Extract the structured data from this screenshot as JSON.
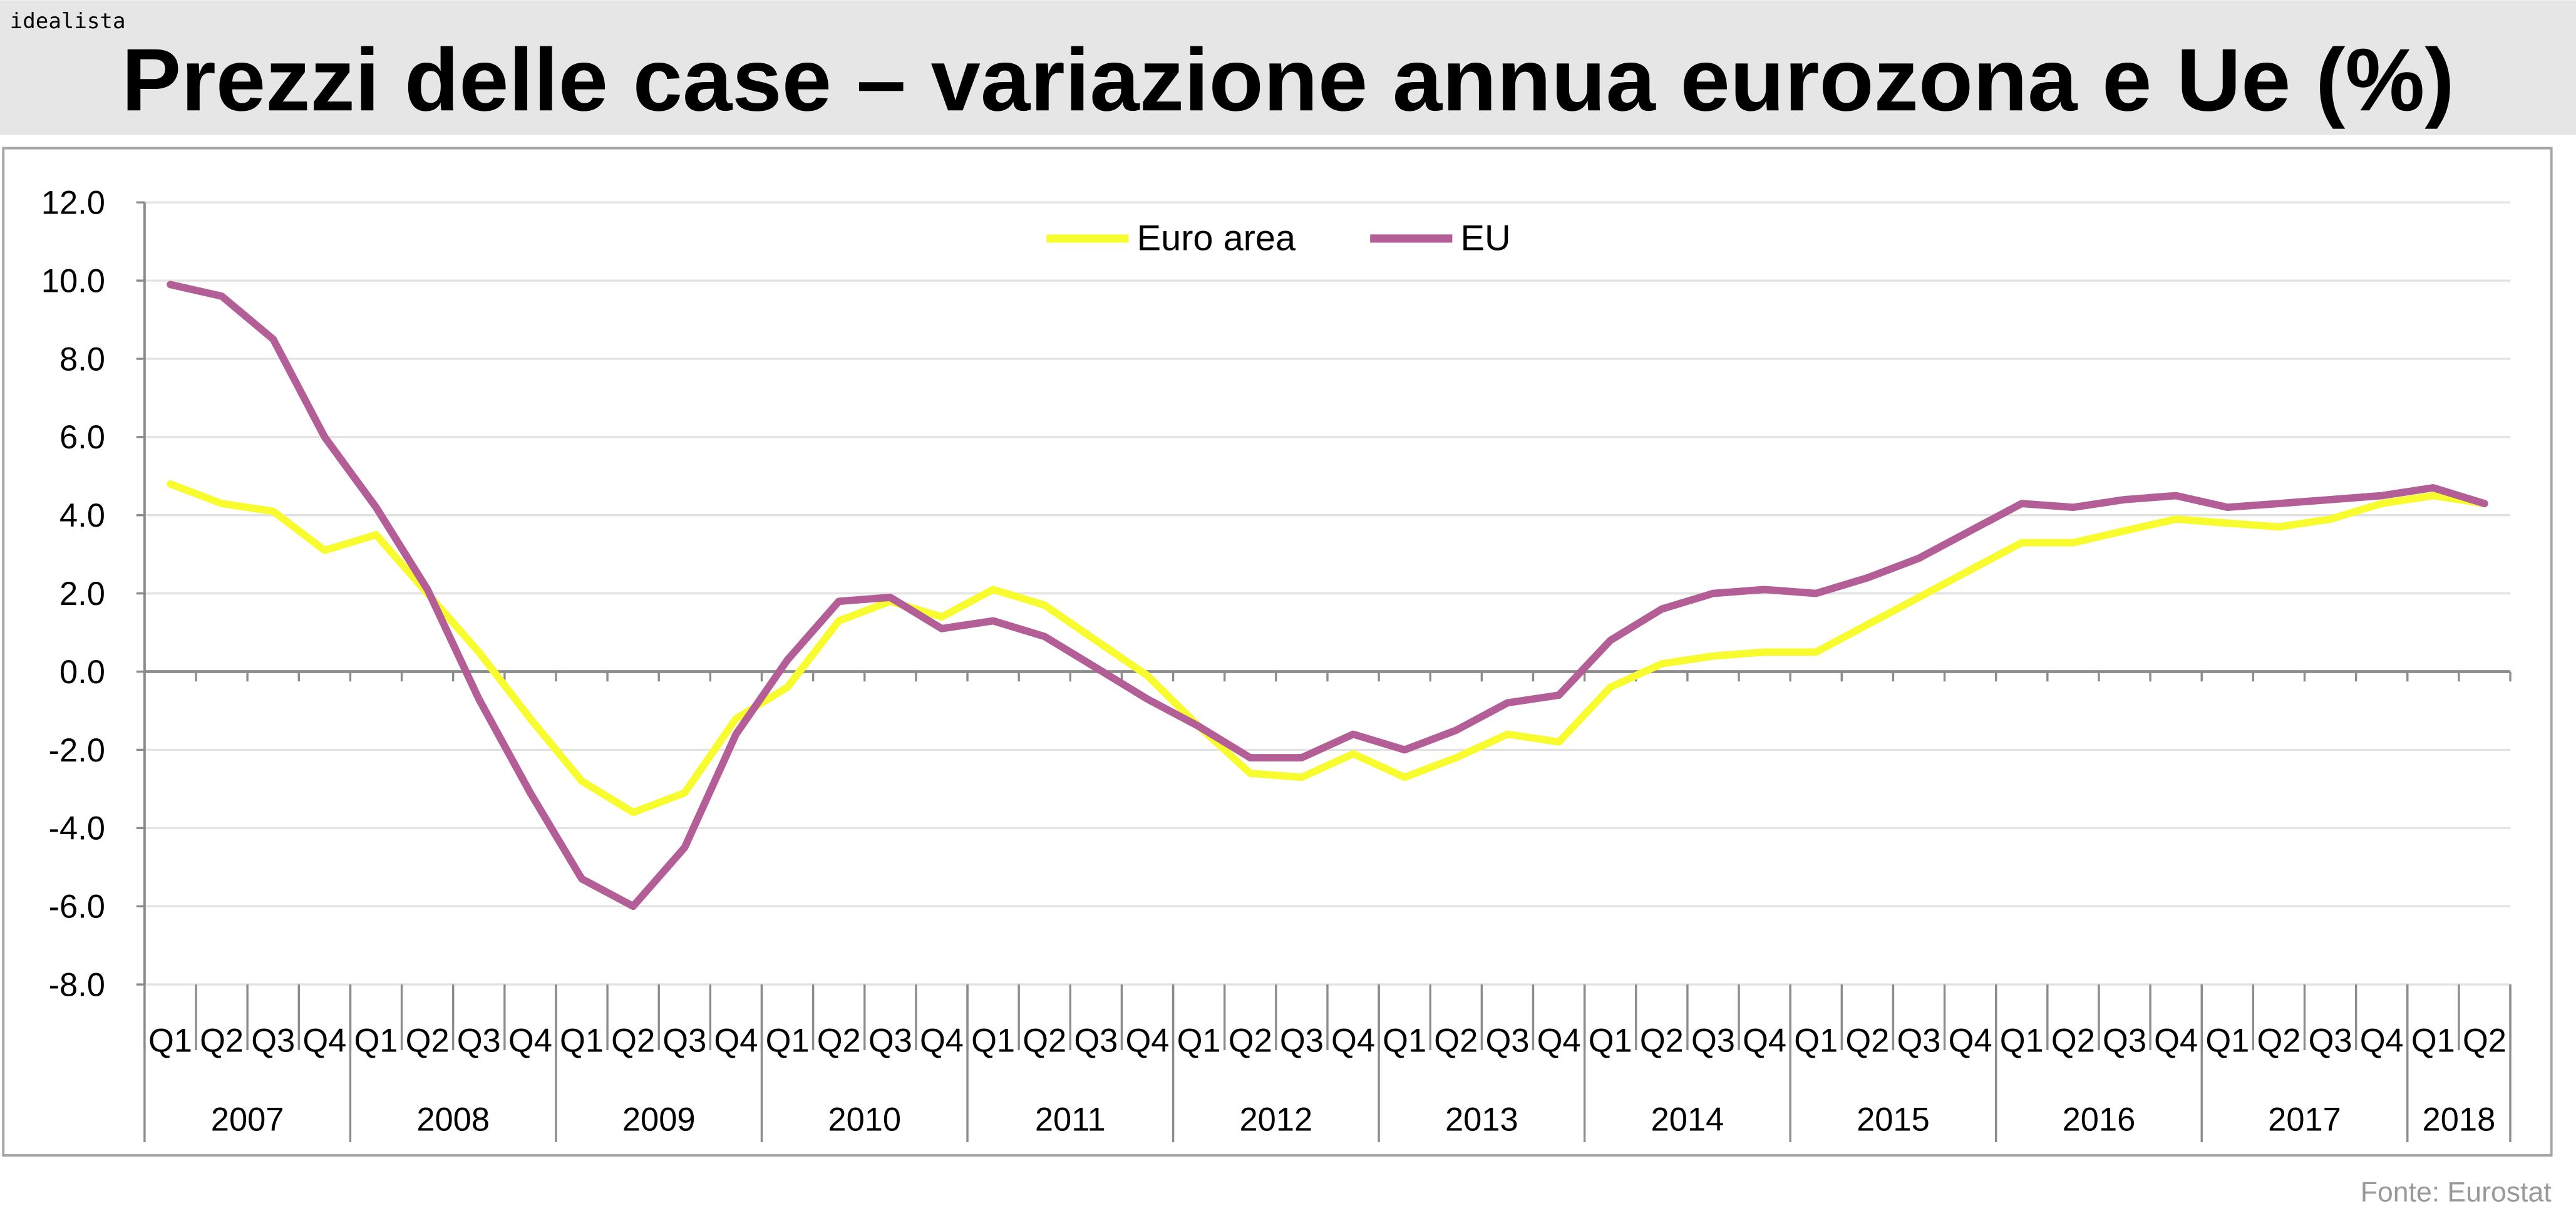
{
  "brand": "idealista",
  "source": "Fonte: Eurostat",
  "colors": {
    "euro_area": "#f8fc2e",
    "eu": "#b35e96",
    "header_bg": "#e6e6e6",
    "grid": "#e3e3e3",
    "axis": "#8c8c8c"
  },
  "chart_data": {
    "type": "line",
    "title": "Prezzi delle case – variazione annua eurozona e Ue (%)",
    "xlabel": "",
    "ylabel": "",
    "ylim": [
      -8,
      12
    ],
    "yticks": [
      "12.0",
      "10.0",
      "8.0",
      "6.0",
      "4.0",
      "2.0",
      "0.0",
      "-2.0",
      "-4.0",
      "-6.0",
      "-8.0"
    ],
    "grid": true,
    "legend_position": "top-center",
    "years": [
      {
        "label": "2007",
        "quarters": 4
      },
      {
        "label": "2008",
        "quarters": 4
      },
      {
        "label": "2009",
        "quarters": 4
      },
      {
        "label": "2010",
        "quarters": 4
      },
      {
        "label": "2011",
        "quarters": 4
      },
      {
        "label": "2012",
        "quarters": 4
      },
      {
        "label": "2013",
        "quarters": 4
      },
      {
        "label": "2014",
        "quarters": 4
      },
      {
        "label": "2015",
        "quarters": 4
      },
      {
        "label": "2016",
        "quarters": 4
      },
      {
        "label": "2017",
        "quarters": 4
      },
      {
        "label": "2018",
        "quarters": 2
      }
    ],
    "quarter_labels": [
      "Q1",
      "Q2",
      "Q3",
      "Q4"
    ],
    "series": [
      {
        "name": "Euro area",
        "color": "#f8fc2e",
        "values": [
          4.8,
          4.3,
          4.1,
          3.1,
          3.5,
          2.0,
          0.5,
          -1.2,
          -2.8,
          -3.6,
          -3.1,
          -1.2,
          -0.4,
          1.3,
          1.8,
          1.4,
          2.1,
          1.7,
          0.8,
          -0.1,
          -1.4,
          -2.6,
          -2.7,
          -2.1,
          -2.7,
          -2.2,
          -1.6,
          -1.8,
          -0.4,
          0.2,
          0.4,
          0.5,
          0.5,
          1.2,
          1.9,
          2.6,
          3.3,
          3.3,
          3.6,
          3.9,
          3.8,
          3.7,
          3.9,
          4.3,
          4.5,
          4.3
        ]
      },
      {
        "name": "EU",
        "color": "#b35e96",
        "values": [
          9.9,
          9.6,
          8.5,
          6.0,
          4.2,
          2.1,
          -0.7,
          -3.1,
          -5.3,
          -6.0,
          -4.5,
          -1.6,
          0.3,
          1.8,
          1.9,
          1.1,
          1.3,
          0.9,
          0.1,
          -0.7,
          -1.4,
          -2.2,
          -2.2,
          -1.6,
          -2.0,
          -1.5,
          -0.8,
          -0.6,
          0.8,
          1.6,
          2.0,
          2.1,
          2.0,
          2.4,
          2.9,
          3.6,
          4.3,
          4.2,
          4.4,
          4.5,
          4.2,
          4.3,
          4.4,
          4.5,
          4.7,
          4.3
        ]
      }
    ]
  }
}
